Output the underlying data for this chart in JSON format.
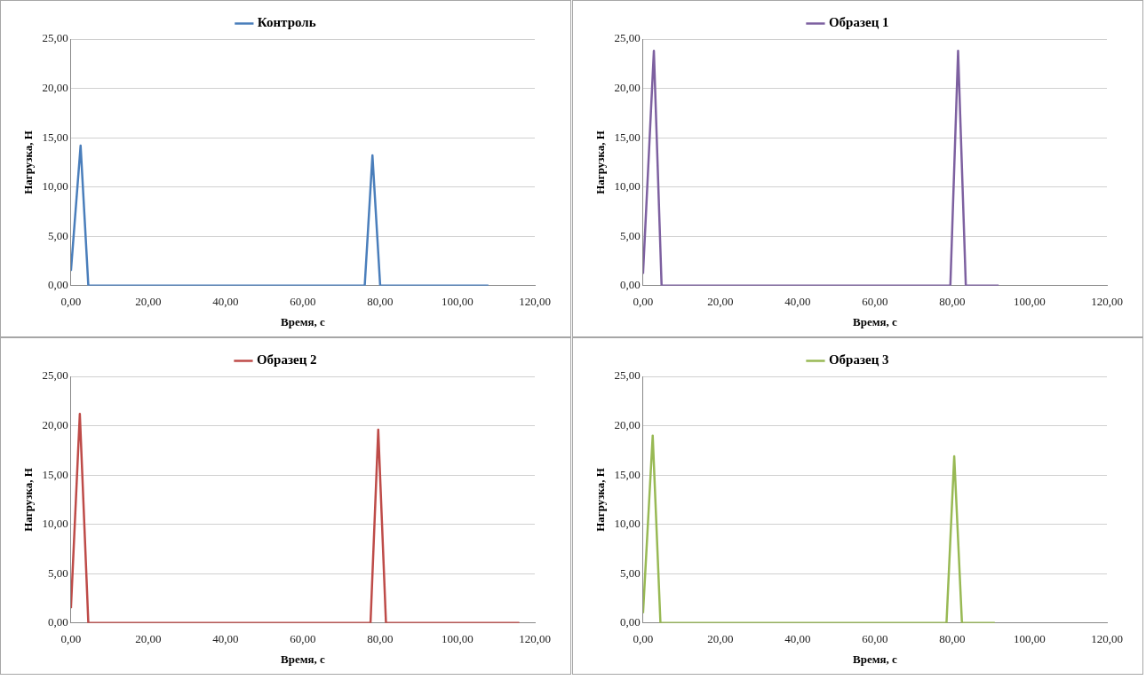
{
  "chart_data": [
    {
      "type": "line",
      "xlabel": "Время, с",
      "ylabel": "Нагрузка, Н",
      "legend": "top",
      "grid": "y",
      "marker": "none",
      "line_style": "solid",
      "xlim": [
        0,
        120
      ],
      "ylim": [
        0,
        25
      ],
      "xticks": [
        {
          "value": 0,
          "label": "0,00"
        },
        {
          "value": 20,
          "label": "20,00"
        },
        {
          "value": 40,
          "label": "40,00"
        },
        {
          "value": 60,
          "label": "60,00"
        },
        {
          "value": 80,
          "label": "80,00"
        },
        {
          "value": 100,
          "label": "100,00"
        },
        {
          "value": 120,
          "label": "120,00"
        }
      ],
      "yticks": [
        {
          "value": 0,
          "label": "0,00"
        },
        {
          "value": 5,
          "label": "5,00"
        },
        {
          "value": 10,
          "label": "10,00"
        },
        {
          "value": 15,
          "label": "15,00"
        },
        {
          "value": 20,
          "label": "20,00"
        },
        {
          "value": 25,
          "label": "25,00"
        }
      ],
      "series": [
        {
          "name": "Контроль",
          "color": "#4a7ebb",
          "x": [
            0,
            2.5,
            4.5,
            76,
            78,
            80,
            108
          ],
          "values": [
            1.5,
            14.2,
            0,
            0,
            13.2,
            0,
            0
          ]
        }
      ]
    },
    {
      "type": "line",
      "xlabel": "Время, с",
      "ylabel": "Нагрузка, Н",
      "legend": "top",
      "grid": "y",
      "marker": "none",
      "line_style": "solid",
      "xlim": [
        0,
        120
      ],
      "ylim": [
        0,
        25
      ],
      "xticks": [
        {
          "value": 0,
          "label": "0,00"
        },
        {
          "value": 20,
          "label": "20,00"
        },
        {
          "value": 40,
          "label": "40,00"
        },
        {
          "value": 60,
          "label": "60,00"
        },
        {
          "value": 80,
          "label": "80,00"
        },
        {
          "value": 100,
          "label": "100,00"
        },
        {
          "value": 120,
          "label": "120,00"
        }
      ],
      "yticks": [
        {
          "value": 0,
          "label": "0,00"
        },
        {
          "value": 5,
          "label": "5,00"
        },
        {
          "value": 10,
          "label": "10,00"
        },
        {
          "value": 15,
          "label": "15,00"
        },
        {
          "value": 20,
          "label": "20,00"
        },
        {
          "value": 25,
          "label": "25,00"
        }
      ],
      "series": [
        {
          "name": "Образец 1",
          "color": "#7d60a0",
          "x": [
            0,
            2.8,
            4.8,
            79.5,
            81.5,
            83.5,
            92
          ],
          "values": [
            1.2,
            23.8,
            0,
            0,
            23.8,
            0,
            0
          ]
        }
      ]
    },
    {
      "type": "line",
      "xlabel": "Время, с",
      "ylabel": "Нагрузка, Н",
      "legend": "top",
      "grid": "y",
      "marker": "none",
      "line_style": "solid",
      "xlim": [
        0,
        120
      ],
      "ylim": [
        0,
        25
      ],
      "xticks": [
        {
          "value": 0,
          "label": "0,00"
        },
        {
          "value": 20,
          "label": "20,00"
        },
        {
          "value": 40,
          "label": "40,00"
        },
        {
          "value": 60,
          "label": "60,00"
        },
        {
          "value": 80,
          "label": "80,00"
        },
        {
          "value": 100,
          "label": "100,00"
        },
        {
          "value": 120,
          "label": "120,00"
        }
      ],
      "yticks": [
        {
          "value": 0,
          "label": "0,00"
        },
        {
          "value": 5,
          "label": "5,00"
        },
        {
          "value": 10,
          "label": "10,00"
        },
        {
          "value": 15,
          "label": "15,00"
        },
        {
          "value": 20,
          "label": "20,00"
        },
        {
          "value": 25,
          "label": "25,00"
        }
      ],
      "series": [
        {
          "name": "Образец 2",
          "color": "#be4b48",
          "x": [
            0,
            2.3,
            4.5,
            77.5,
            79.5,
            81.5,
            116
          ],
          "values": [
            1.5,
            21.2,
            0,
            0,
            19.6,
            0,
            0
          ]
        }
      ]
    },
    {
      "type": "line",
      "xlabel": "Время, с",
      "ylabel": "Нагрузка, Н",
      "legend": "top",
      "grid": "y",
      "marker": "none",
      "line_style": "solid",
      "xlim": [
        0,
        120
      ],
      "ylim": [
        0,
        25
      ],
      "xticks": [
        {
          "value": 0,
          "label": "0,00"
        },
        {
          "value": 20,
          "label": "20,00"
        },
        {
          "value": 40,
          "label": "40,00"
        },
        {
          "value": 60,
          "label": "60,00"
        },
        {
          "value": 80,
          "label": "80,00"
        },
        {
          "value": 100,
          "label": "100,00"
        },
        {
          "value": 120,
          "label": "120,00"
        }
      ],
      "yticks": [
        {
          "value": 0,
          "label": "0,00"
        },
        {
          "value": 5,
          "label": "5,00"
        },
        {
          "value": 10,
          "label": "10,00"
        },
        {
          "value": 15,
          "label": "15,00"
        },
        {
          "value": 20,
          "label": "20,00"
        },
        {
          "value": 25,
          "label": "25,00"
        }
      ],
      "series": [
        {
          "name": "Образец 3",
          "color": "#98b954",
          "x": [
            0,
            2.5,
            4.5,
            78.5,
            80.5,
            82.5,
            91
          ],
          "values": [
            1.0,
            19.0,
            0,
            0,
            16.9,
            0,
            0
          ]
        }
      ]
    }
  ]
}
